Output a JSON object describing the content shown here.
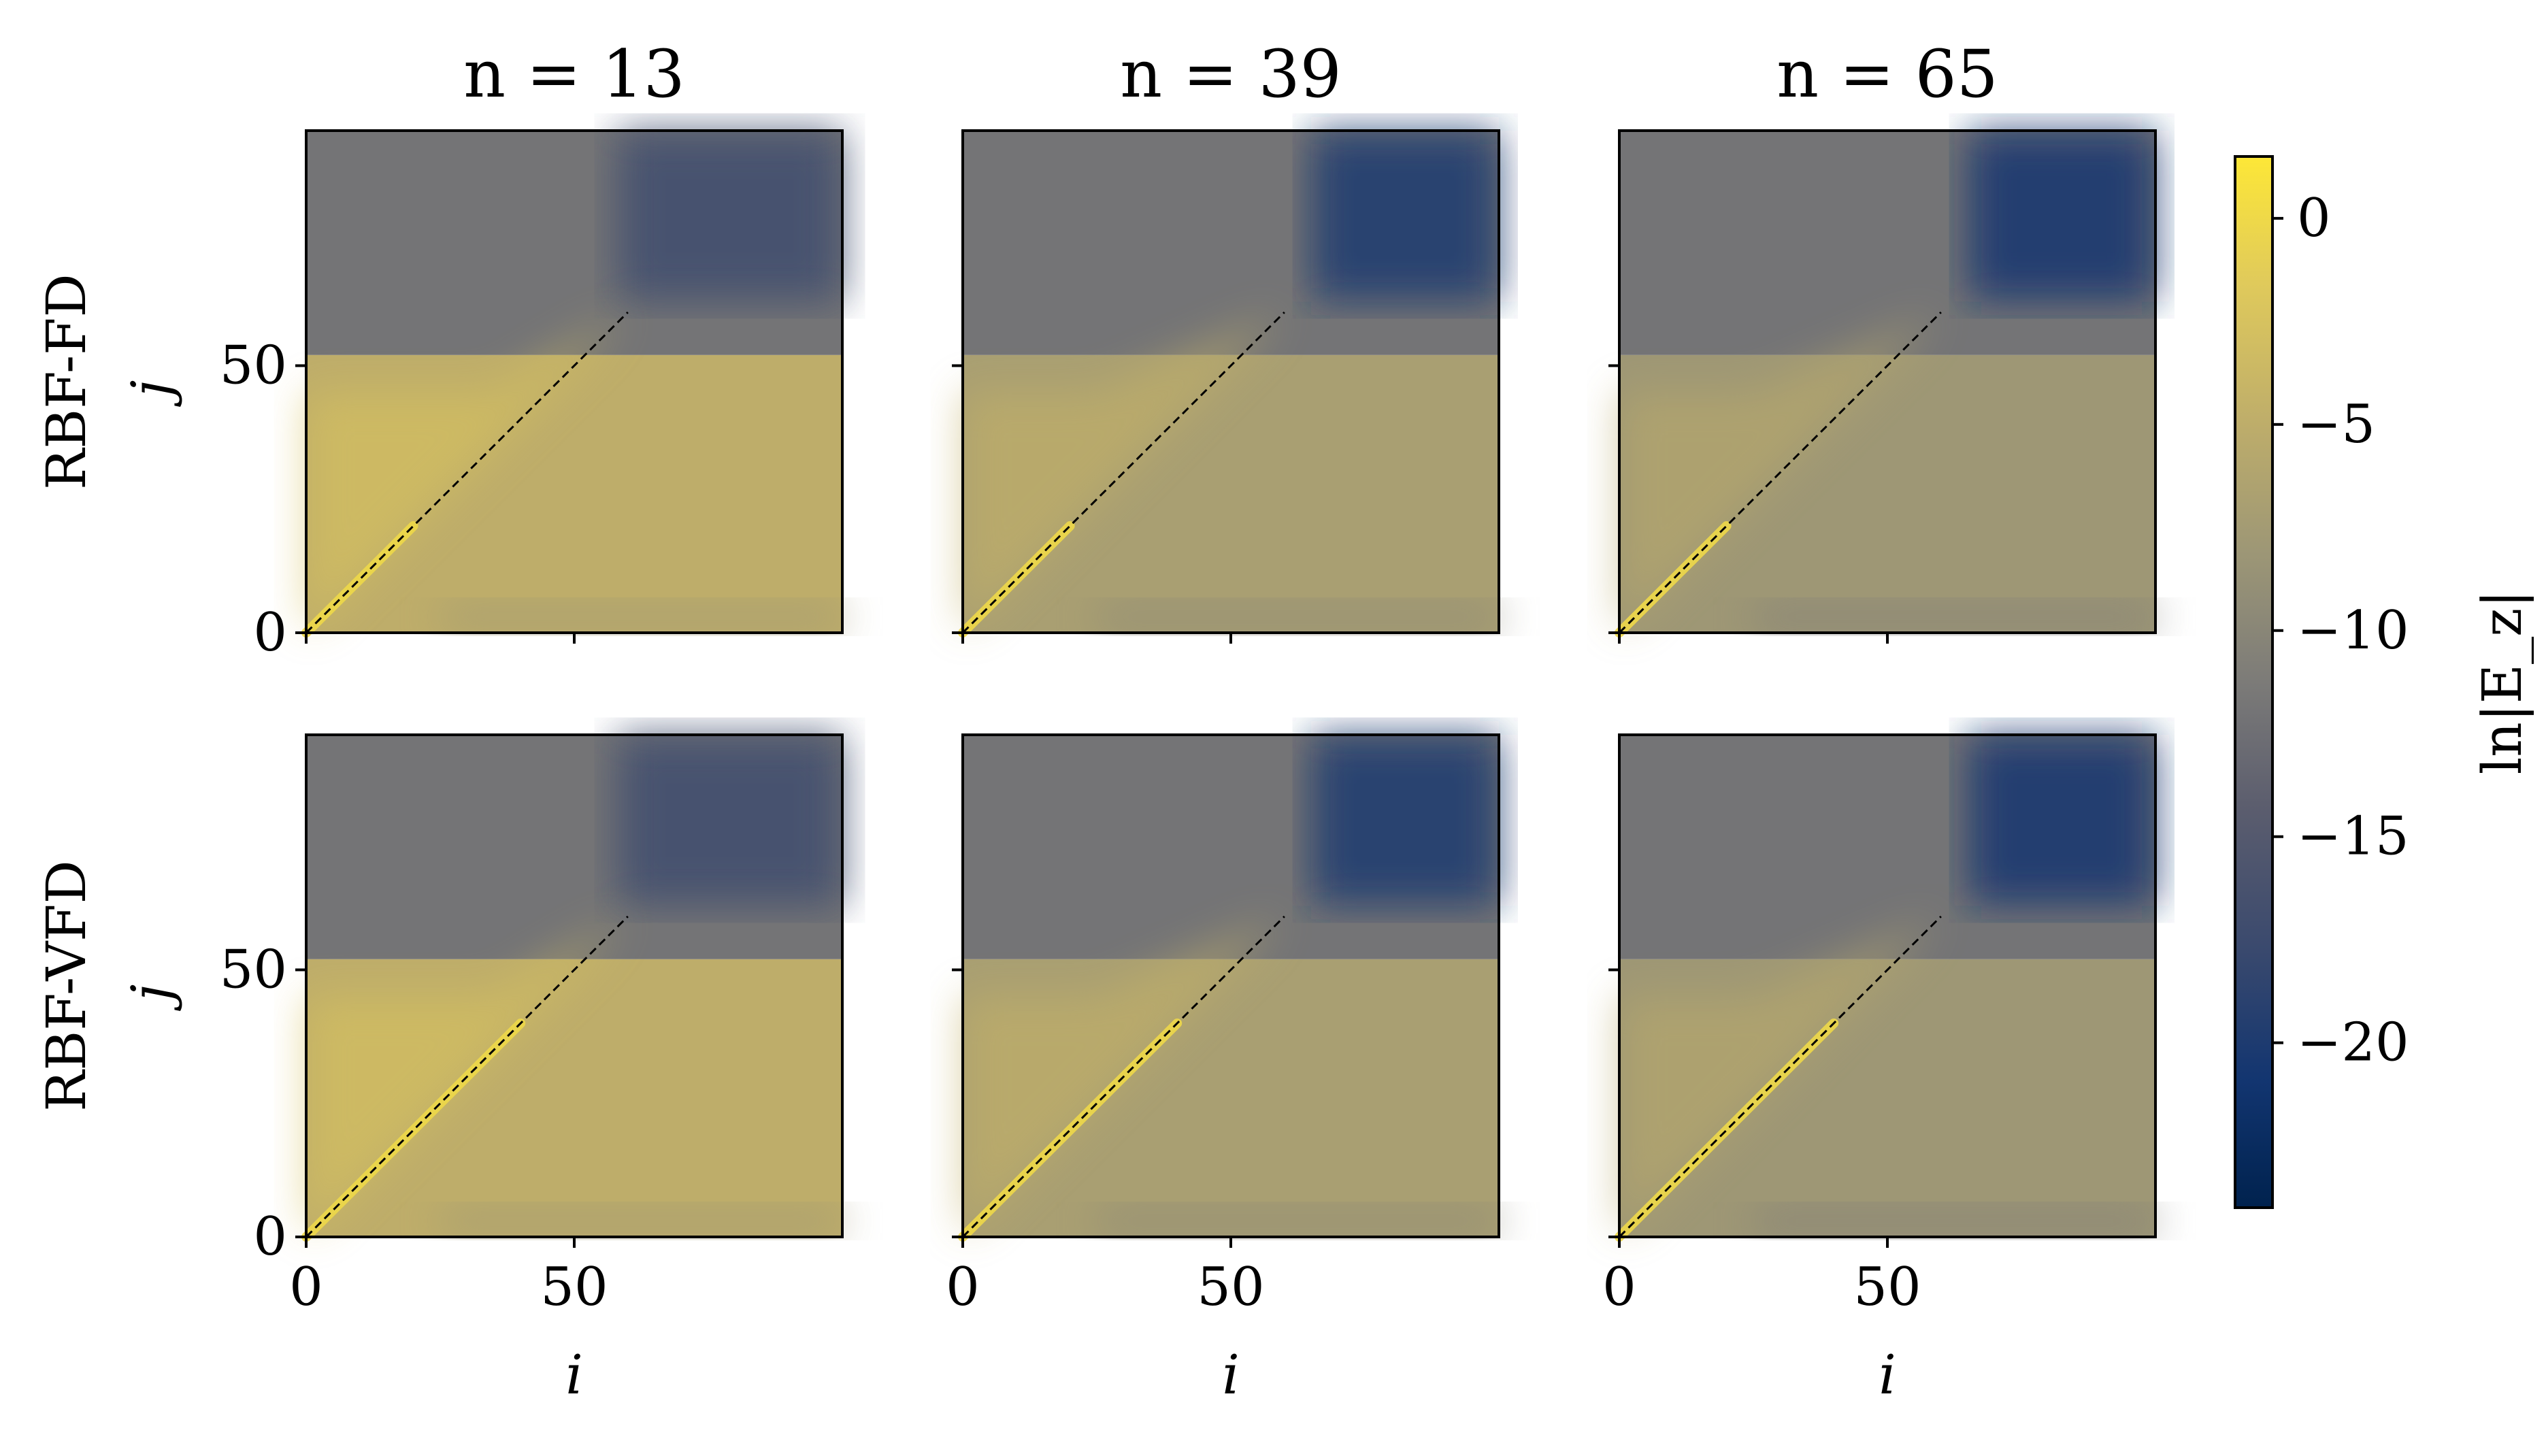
{
  "chart_data": {
    "type": "heatmap",
    "layout": "2x3 grid of heatmap panels sharing one colorbar on the right",
    "colormap": "cividis",
    "columns": [
      {
        "title": "n = 13",
        "n": 13
      },
      {
        "title": "n = 39",
        "n": 39
      },
      {
        "title": "n = 65",
        "n": 65
      }
    ],
    "rows": [
      {
        "label": "RBF-FD"
      },
      {
        "label": "RBF-VFD"
      }
    ],
    "xlabel": "i",
    "ylabel": "j",
    "xlim": [
      0,
      100
    ],
    "ylim": [
      0,
      94
    ],
    "xticks": [
      0,
      50
    ],
    "yticks": [
      0,
      50
    ],
    "diagonal_line": {
      "style": "dashed",
      "color": "#000000",
      "from": [
        0,
        0
      ],
      "to": [
        60,
        60
      ]
    },
    "colorbar": {
      "label": "ln|E_z|",
      "range": [
        -24,
        1.5
      ],
      "ticks": [
        0,
        -5,
        -10,
        -15,
        -20
      ],
      "tick_labels": [
        "0",
        "−5",
        "−10",
        "−15",
        "−20"
      ]
    },
    "panels": [
      {
        "row": 0,
        "col": 0,
        "method": "RBF-FD",
        "n": 13,
        "upper_region_ln_err": -12,
        "upper_right_ln_err": -17,
        "lower_region_ln_err": -5,
        "diagonal_ln_err": 0
      },
      {
        "row": 0,
        "col": 1,
        "method": "RBF-FD",
        "n": 39,
        "upper_region_ln_err": -12,
        "upper_right_ln_err": -20,
        "lower_region_ln_err": -7,
        "diagonal_ln_err": 0
      },
      {
        "row": 0,
        "col": 2,
        "method": "RBF-FD",
        "n": 65,
        "upper_region_ln_err": -12,
        "upper_right_ln_err": -21,
        "lower_region_ln_err": -8,
        "diagonal_ln_err": 0
      },
      {
        "row": 1,
        "col": 0,
        "method": "RBF-VFD",
        "n": 13,
        "upper_region_ln_err": -12,
        "upper_right_ln_err": -17,
        "lower_region_ln_err": -5,
        "diagonal_ln_err": 0
      },
      {
        "row": 1,
        "col": 1,
        "method": "RBF-VFD",
        "n": 39,
        "upper_region_ln_err": -12,
        "upper_right_ln_err": -20,
        "lower_region_ln_err": -7,
        "diagonal_ln_err": 0
      },
      {
        "row": 1,
        "col": 2,
        "method": "RBF-VFD",
        "n": 65,
        "upper_region_ln_err": -12,
        "upper_right_ln_err": -21,
        "lower_region_ln_err": -8,
        "diagonal_ln_err": 0
      }
    ]
  }
}
